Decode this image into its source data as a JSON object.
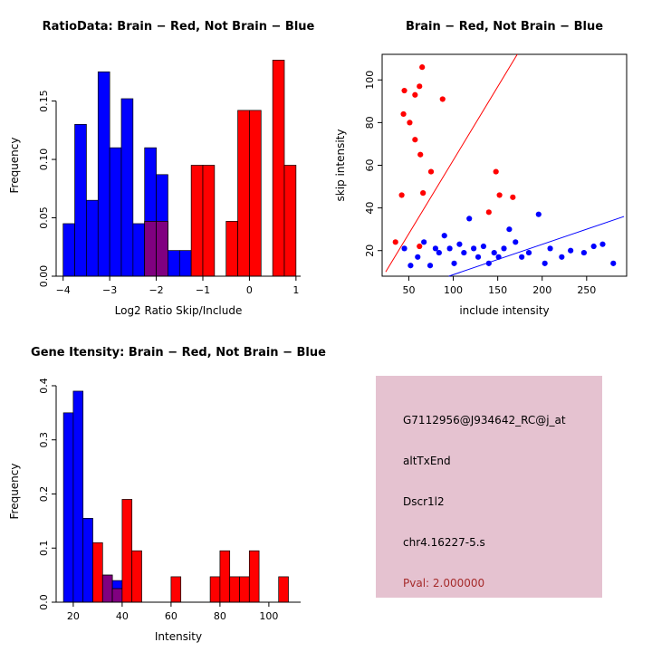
{
  "page": {
    "background": "#FFFFFF"
  },
  "chart_data": [
    {
      "type": "bar",
      "title": "RatioData: Brain − Red, Not Brain − Blue",
      "xlabel": "Log2 Ratio Skip/Include",
      "ylabel": "Frequency",
      "grid": false,
      "bin_start": -4.0,
      "bin_width": 0.25,
      "xlim": [
        -4.15,
        1.1
      ],
      "ylim": [
        0,
        0.19
      ],
      "xticks": [
        -4,
        -3,
        -2,
        -1,
        0,
        1
      ],
      "xtick_labels": [
        "−4",
        "−3",
        "−2",
        "−1",
        "0",
        "1"
      ],
      "yticks": [
        0,
        0.05,
        0.1,
        0.15
      ],
      "ytick_labels": [
        "0.00",
        "0.05",
        "0.10",
        "0.15"
      ],
      "overlap_color": "#800080",
      "series": [
        {
          "name": "Not Brain (blue)",
          "color": "#0000FF",
          "values": [
            0.045,
            0.13,
            0.065,
            0.175,
            0.11,
            0.152,
            0.045,
            0.11,
            0.087,
            0.022,
            0.022,
            0,
            0,
            0,
            0,
            0,
            0,
            0,
            0,
            0
          ]
        },
        {
          "name": "Brain (red)",
          "color": "#FF0000",
          "values": [
            0,
            0,
            0,
            0,
            0,
            0,
            0,
            0.047,
            0.047,
            0,
            0,
            0.095,
            0.095,
            0,
            0.047,
            0.142,
            0.142,
            0,
            0.185,
            0.095
          ]
        }
      ]
    },
    {
      "type": "scatter",
      "title": "Brain − Red, Not Brain − Blue",
      "xlabel": "include intensity",
      "ylabel": "skip intensity",
      "grid": false,
      "box": true,
      "xlim": [
        20,
        295
      ],
      "ylim": [
        8,
        112
      ],
      "xticks": [
        50,
        100,
        150,
        200,
        250
      ],
      "xtick_labels": [
        "50",
        "100",
        "150",
        "200",
        "250"
      ],
      "yticks": [
        20,
        40,
        60,
        80,
        100
      ],
      "ytick_labels": [
        "20",
        "40",
        "60",
        "80",
        "100"
      ],
      "series": [
        {
          "name": "Brain (red)",
          "color": "#FF0000",
          "points": [
            [
              65,
              106
            ],
            [
              45,
              95
            ],
            [
              57,
              93
            ],
            [
              62,
              97
            ],
            [
              88,
              91
            ],
            [
              44,
              84
            ],
            [
              51,
              80
            ],
            [
              57,
              72
            ],
            [
              63,
              65
            ],
            [
              75,
              57
            ],
            [
              148,
              57
            ],
            [
              42,
              46
            ],
            [
              66,
              47
            ],
            [
              152,
              46
            ],
            [
              167,
              45
            ],
            [
              140,
              38
            ],
            [
              35,
              24
            ],
            [
              62,
              22
            ]
          ]
        },
        {
          "name": "Not Brain (blue)",
          "color": "#0000FF",
          "points": [
            [
              45,
              21
            ],
            [
              52,
              13
            ],
            [
              60,
              17
            ],
            [
              67,
              24
            ],
            [
              74,
              13
            ],
            [
              80,
              21
            ],
            [
              84,
              19
            ],
            [
              90,
              27
            ],
            [
              96,
              21
            ],
            [
              101,
              14
            ],
            [
              107,
              23
            ],
            [
              112,
              19
            ],
            [
              118,
              35
            ],
            [
              123,
              21
            ],
            [
              128,
              17
            ],
            [
              134,
              22
            ],
            [
              140,
              14
            ],
            [
              146,
              19
            ],
            [
              151,
              17
            ],
            [
              157,
              21
            ],
            [
              163,
              30
            ],
            [
              170,
              24
            ],
            [
              177,
              17
            ],
            [
              185,
              19
            ],
            [
              196,
              37
            ],
            [
              203,
              14
            ],
            [
              209,
              21
            ],
            [
              222,
              17
            ],
            [
              232,
              20
            ],
            [
              247,
              19
            ],
            [
              258,
              22
            ],
            [
              268,
              23
            ],
            [
              280,
              14
            ]
          ]
        }
      ],
      "fit_lines": [
        {
          "name": "brain-fit-line",
          "color": "#FF0000",
          "x1": 24,
          "y1": 10,
          "x2": 172,
          "y2": 112
        },
        {
          "name": "notbrain-fit-line",
          "color": "#0000FF",
          "x1": 95,
          "y1": 8,
          "x2": 292,
          "y2": 36
        }
      ]
    },
    {
      "type": "bar",
      "title": "Gene Itensity: Brain − Red, Not Brain − Blue",
      "xlabel": "Intensity",
      "ylabel": "Frequency",
      "grid": false,
      "bin_start": 16,
      "bin_width": 4,
      "xlim": [
        13,
        113
      ],
      "ylim": [
        0,
        0.41
      ],
      "xticks": [
        20,
        40,
        60,
        80,
        100
      ],
      "xtick_labels": [
        "20",
        "40",
        "60",
        "80",
        "100"
      ],
      "yticks": [
        0,
        0.1,
        0.2,
        0.3,
        0.4
      ],
      "ytick_labels": [
        "0.0",
        "0.1",
        "0.2",
        "0.3",
        "0.4"
      ],
      "overlap_color": "#800080",
      "series": [
        {
          "name": "Not Brain (blue)",
          "color": "#0000FF",
          "values": [
            0.35,
            0.39,
            0.155,
            0,
            0.05,
            0.04,
            0,
            0,
            0,
            0,
            0,
            0,
            0,
            0,
            0,
            0,
            0,
            0,
            0,
            0,
            0,
            0,
            0,
            0
          ]
        },
        {
          "name": "Brain (red)",
          "color": "#FF0000",
          "values": [
            0,
            0,
            0,
            0.11,
            0.05,
            0.025,
            0.19,
            0.095,
            0,
            0,
            0,
            0.047,
            0,
            0,
            0,
            0.047,
            0.095,
            0.047,
            0.047,
            0.095,
            0,
            0,
            0.047,
            0
          ]
        }
      ]
    }
  ],
  "info_panel": {
    "background": "#E5C2D0",
    "lines": [
      {
        "text": "G7112956@J934642_RC@j_at",
        "color": "#000000"
      },
      {
        "text": "altTxEnd",
        "color": "#000000"
      },
      {
        "text": "Dscr1l2",
        "color": "#000000"
      },
      {
        "text": "chr4.16227-5.s",
        "color": "#000000"
      },
      {
        "text": "Pval: 2.000000",
        "color": "#A52A2A"
      }
    ]
  }
}
